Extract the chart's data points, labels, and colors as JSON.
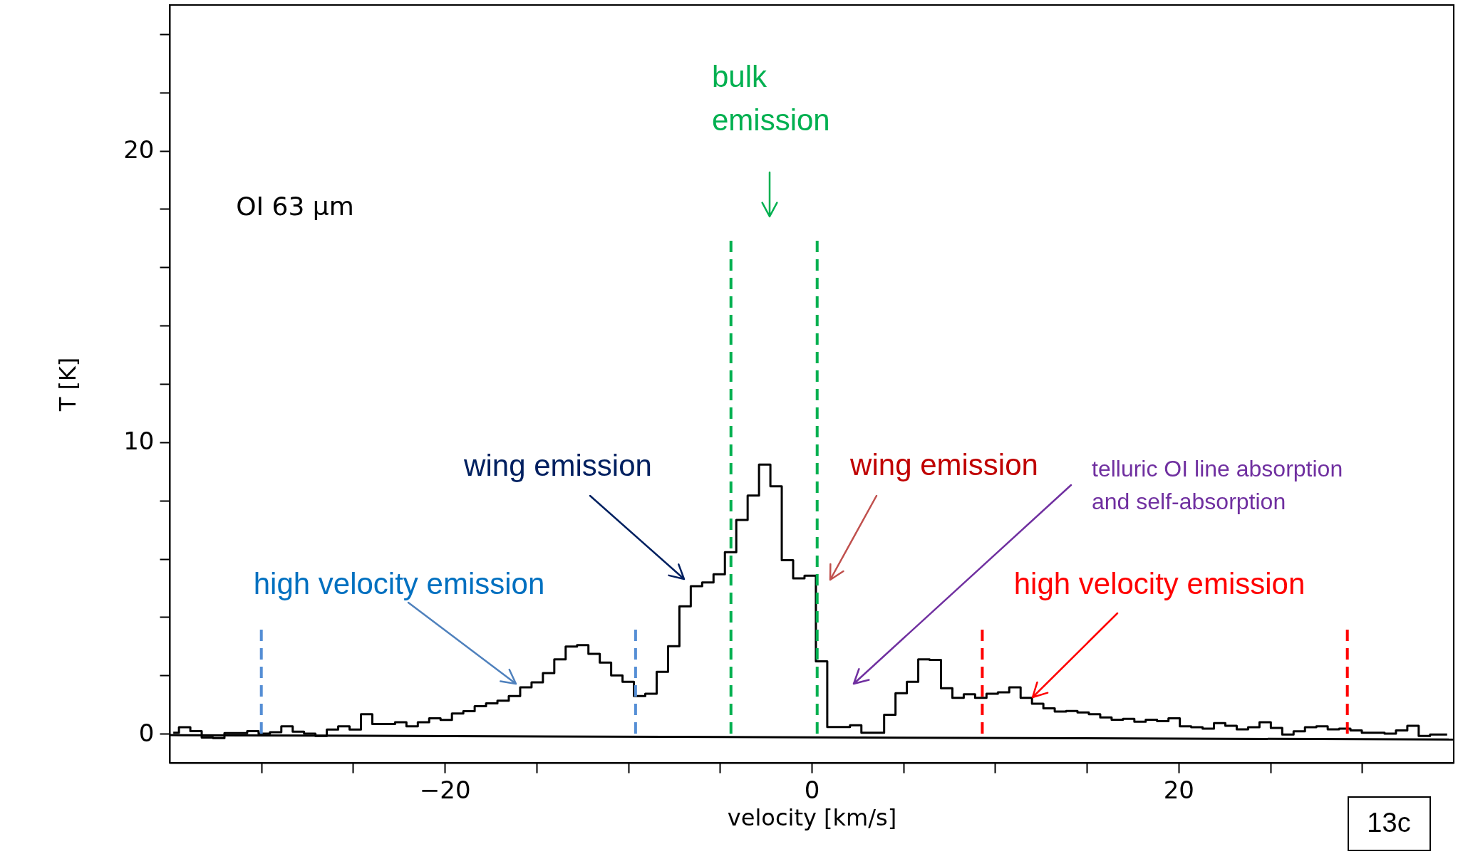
{
  "chart_data": {
    "type": "step",
    "xlabel": "velocity [km/s]",
    "ylabel": "T [K]",
    "xlim": [
      -35,
      35
    ],
    "ylim": [
      -1,
      25
    ],
    "xticks": [
      {
        "value": -30,
        "label": null
      },
      {
        "value": -25,
        "label": null
      },
      {
        "value": -20,
        "label": "−20"
      },
      {
        "value": -15,
        "label": null
      },
      {
        "value": -10,
        "label": null
      },
      {
        "value": -5,
        "label": null
      },
      0,
      {
        "value": 5,
        "label": null
      },
      {
        "value": 10,
        "label": null
      },
      {
        "value": 15,
        "label": null
      },
      20,
      {
        "value": 25,
        "label": null
      },
      {
        "value": 30,
        "label": null
      }
    ],
    "yticks": [
      0,
      {
        "value": 2,
        "label": null
      },
      {
        "value": 4,
        "label": null
      },
      {
        "value": 6,
        "label": null
      },
      {
        "value": 8,
        "label": null
      },
      10,
      {
        "value": 12,
        "label": null
      },
      {
        "value": 14,
        "label": null
      },
      {
        "value": 16,
        "label": null
      },
      {
        "value": 18,
        "label": null
      },
      20,
      {
        "value": 22,
        "label": null
      },
      {
        "value": 24,
        "label": null
      }
    ],
    "series": [
      {
        "color": "#000000",
        "x": [
          -34.8,
          -34.18,
          -33.56,
          -32.94,
          -32.32,
          -31.7,
          -31.08,
          -30.46,
          -29.84,
          -29.22,
          -28.6,
          -27.98,
          -27.36,
          -26.74,
          -26.12,
          -25.5,
          -24.88,
          -24.26,
          -23.64,
          -23.02,
          -22.4,
          -21.78,
          -21.16,
          -20.54,
          -19.92,
          -19.3,
          -18.68,
          -18.06,
          -17.44,
          -16.82,
          -16.2,
          -15.58,
          -14.96,
          -14.34,
          -13.72,
          -13.1,
          -12.48,
          -11.86,
          -11.24,
          -10.62,
          -10.0,
          -9.38,
          -8.76,
          -8.14,
          -7.52,
          -6.9,
          -6.28,
          -5.66,
          -5.04,
          -4.42,
          -3.8,
          -3.18,
          -2.56,
          -1.94,
          -1.32,
          -0.7,
          -0.08,
          0.54,
          1.16,
          1.78,
          2.4,
          3.02,
          3.64,
          4.26,
          4.88,
          5.5,
          6.12,
          6.74,
          7.36,
          7.98,
          8.6,
          9.22,
          9.84,
          10.46,
          11.08,
          11.7,
          12.32,
          12.94,
          13.56,
          14.18,
          14.8,
          15.42,
          16.04,
          16.66,
          17.28,
          17.9,
          18.52,
          19.14,
          19.76,
          20.38,
          21.0,
          21.62,
          22.24,
          22.86,
          23.48,
          24.1,
          24.72,
          25.34,
          25.96,
          26.58,
          27.2,
          27.82,
          28.44,
          29.06,
          29.68,
          30.3,
          30.92,
          31.54,
          32.16,
          32.78,
          33.4,
          34.02,
          34.64
        ],
        "values": [
          0.03,
          0.22,
          0.09,
          -0.13,
          -0.15,
          0.02,
          0.02,
          0.09,
          0.0,
          0.05,
          0.25,
          0.07,
          0.0,
          -0.08,
          0.14,
          0.25,
          0.14,
          0.67,
          0.33,
          0.33,
          0.39,
          0.25,
          0.39,
          0.53,
          0.47,
          0.69,
          0.77,
          0.94,
          1.04,
          1.13,
          1.29,
          1.59,
          1.76,
          2.08,
          2.55,
          2.99,
          3.04,
          2.74,
          2.44,
          2.0,
          1.78,
          1.29,
          1.37,
          2.12,
          3.0,
          4.37,
          5.06,
          5.19,
          5.47,
          6.23,
          7.33,
          8.17,
          9.23,
          8.49,
          5.95,
          5.33,
          5.42,
          2.48,
          0.23,
          0.23,
          0.29,
          0.03,
          0.03,
          0.65,
          1.39,
          1.78,
          2.55,
          2.53,
          1.56,
          1.23,
          1.35,
          1.23,
          1.37,
          1.42,
          1.59,
          1.23,
          1.03,
          0.87,
          0.76,
          0.78,
          0.73,
          0.67,
          0.56,
          0.48,
          0.51,
          0.41,
          0.48,
          0.43,
          0.53,
          0.25,
          0.22,
          0.17,
          0.36,
          0.27,
          0.15,
          0.22,
          0.39,
          0.2,
          -0.03,
          0.08,
          0.22,
          0.25,
          0.15,
          0.17,
          0.11,
          0.03,
          0.03,
          0.0,
          0.11,
          0.27,
          -0.08,
          -0.03,
          -0.03
        ]
      },
      {
        "type": "line",
        "color": "#000000",
        "x": [
          -35,
          35
        ],
        "values": [
          -0.05,
          -0.2
        ]
      },
      {
        "type": "line",
        "line_style": "dashed",
        "color": "#558ed5",
        "x": [
          -30.0,
          -30.0
        ],
        "values": [
          0,
          3.7
        ]
      },
      {
        "type": "line",
        "line_style": "dashed",
        "color": "#558ed5",
        "x": [
          -9.6,
          -9.6
        ],
        "values": [
          0,
          3.7
        ]
      },
      {
        "type": "line",
        "line_style": "dashed",
        "color": "#00b050",
        "x": [
          -4.4,
          -4.4
        ],
        "values": [
          0,
          17
        ]
      },
      {
        "type": "line",
        "line_style": "dashed",
        "color": "#00b050",
        "x": [
          0.3,
          0.3
        ],
        "values": [
          0,
          17
        ]
      },
      {
        "type": "line",
        "line_style": "dashed",
        "color": "#ff0000",
        "x": [
          9.3,
          9.3
        ],
        "values": [
          0,
          3.7
        ]
      },
      {
        "type": "line",
        "line_style": "dashed",
        "color": "#ff0000",
        "x": [
          29.2,
          29.2
        ],
        "values": [
          0,
          3.7
        ]
      }
    ],
    "annotations": [
      "OI 63 μm",
      "bulk emission",
      "wing emission",
      "wing emission",
      "telluric OI line absorption and self-absorption",
      "high velocity emission",
      "high velocity emission",
      "13c"
    ]
  }
}
